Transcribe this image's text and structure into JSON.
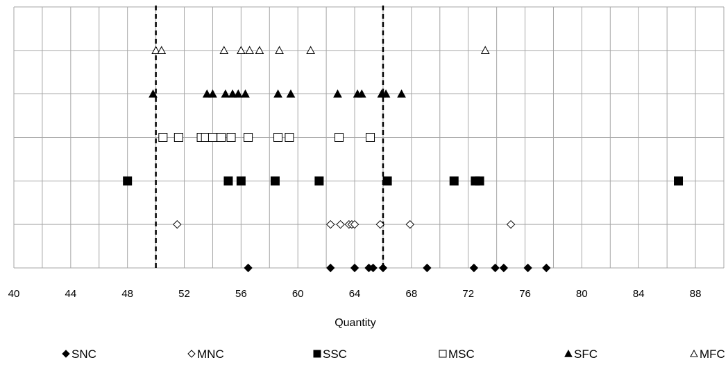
{
  "chart_data": {
    "type": "scatter",
    "title": "",
    "xlabel": "Quantity",
    "ylabel": "",
    "xlim": [
      40,
      90
    ],
    "ylim": [
      0,
      6
    ],
    "xticks": [
      40,
      44,
      48,
      52,
      56,
      60,
      64,
      68,
      72,
      76,
      80,
      84,
      88
    ],
    "x_tick_labels": [
      "40",
      "44",
      "48",
      "52",
      "56",
      "60",
      "64",
      "68",
      "72",
      "76",
      "80",
      "84",
      "88"
    ],
    "grid": true,
    "legend_position": "bottom",
    "reference_lines_x": [
      50,
      66
    ],
    "series": [
      {
        "name": "SNC",
        "marker": "filled-diamond",
        "y": 0,
        "x": [
          56.5,
          62.3,
          64.0,
          65.0,
          65.3,
          66.0,
          69.1,
          72.4,
          73.9,
          74.5,
          76.2,
          77.5
        ]
      },
      {
        "name": "MNC",
        "marker": "open-diamond",
        "y": 1,
        "x": [
          51.5,
          62.3,
          63.0,
          63.6,
          63.8,
          64.0,
          65.8,
          67.9,
          75.0
        ]
      },
      {
        "name": "SSC",
        "marker": "filled-square",
        "y": 2,
        "x": [
          48.0,
          55.1,
          56.0,
          58.4,
          61.5,
          66.3,
          71.0,
          72.5,
          72.8,
          86.8
        ]
      },
      {
        "name": "MSC",
        "marker": "open-square",
        "y": 3,
        "x": [
          50.5,
          51.6,
          53.2,
          53.5,
          54.0,
          54.6,
          55.3,
          56.5,
          58.6,
          59.4,
          62.9,
          65.1
        ]
      },
      {
        "name": "SFC",
        "marker": "filled-triangle",
        "y": 4,
        "x": [
          49.8,
          53.6,
          54.0,
          54.9,
          55.4,
          55.8,
          56.3,
          58.6,
          59.5,
          62.8,
          64.2,
          64.5,
          65.9,
          66.2,
          67.3
        ]
      },
      {
        "name": "MFC",
        "marker": "open-triangle",
        "y": 5,
        "x": [
          50.0,
          50.4,
          54.8,
          56.0,
          56.6,
          57.3,
          58.7,
          60.9,
          73.2
        ]
      }
    ]
  }
}
